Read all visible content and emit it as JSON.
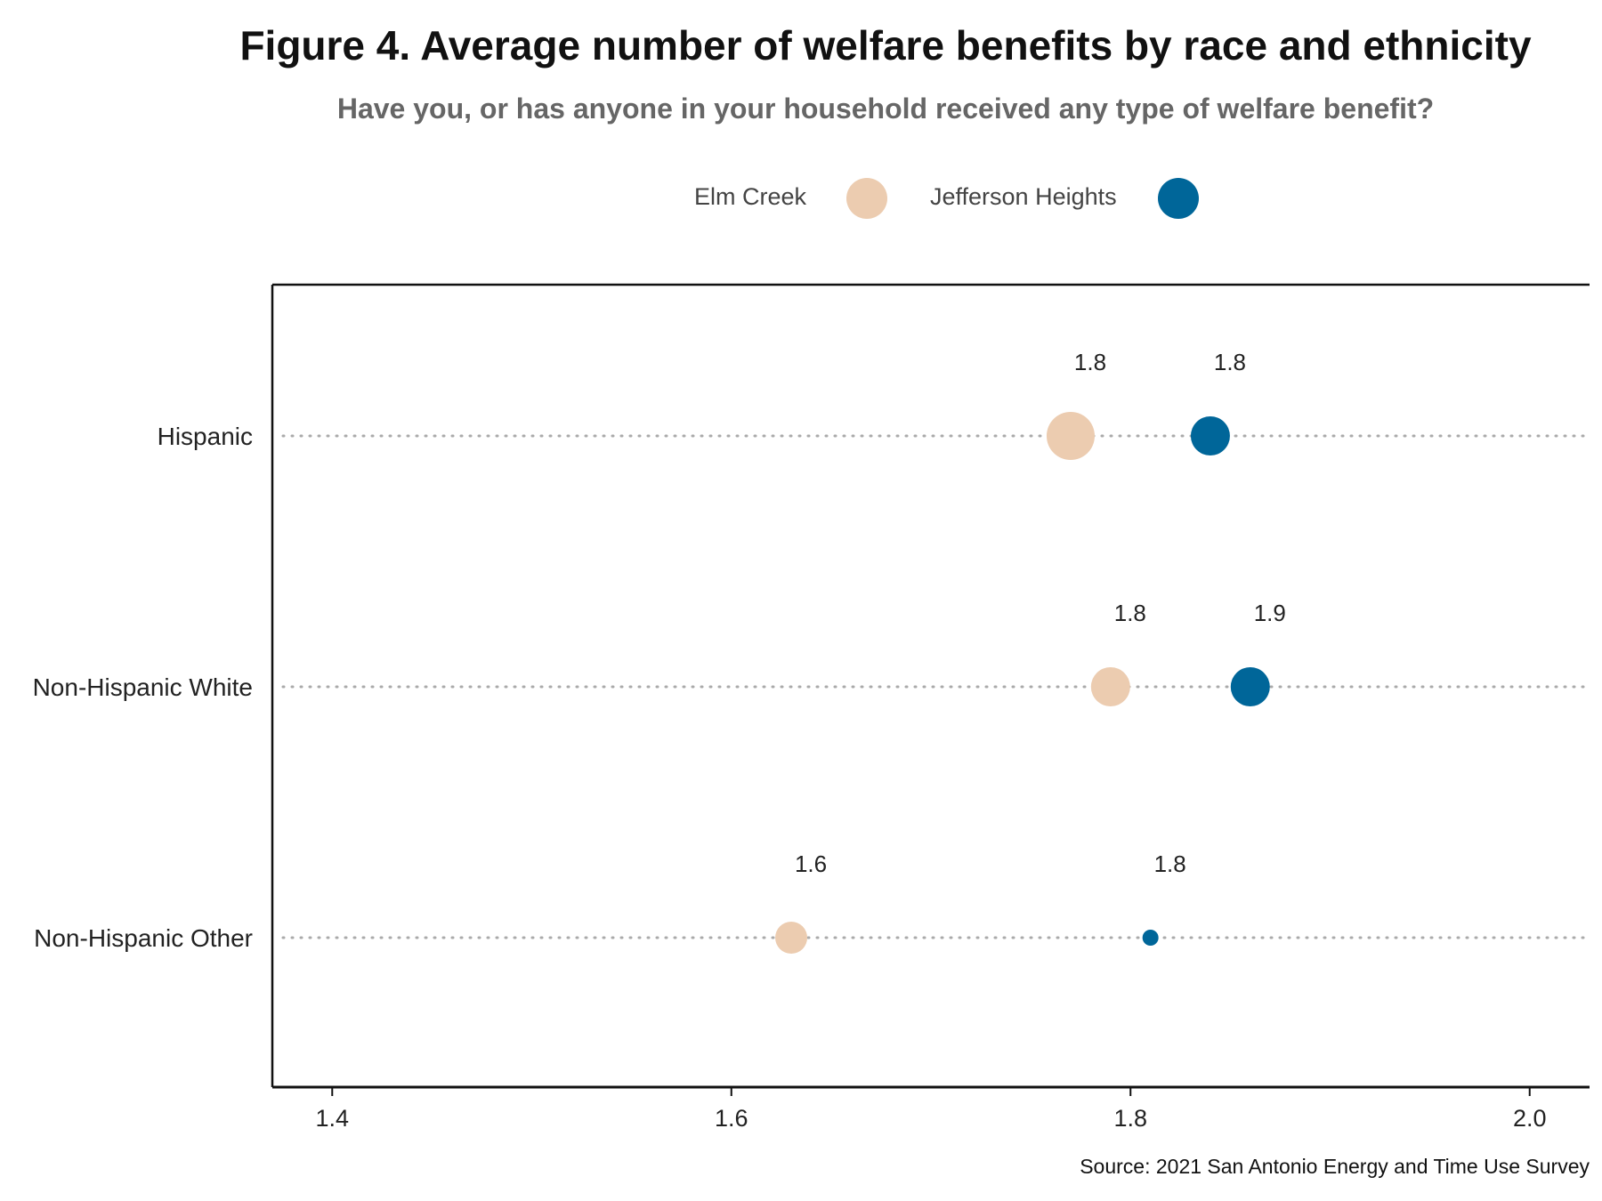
{
  "title": "Figure 4. Average number of welfare benefits by race and ethnicity",
  "subtitle": "Have you, or has anyone in your household received any type of welfare benefit?",
  "source": "Source: 2021 San Antonio Energy and Time Use Survey",
  "colors": {
    "elm_creek": "#ecccb0",
    "jefferson_heights": "#006699",
    "grid": "#aaaaaa",
    "axis": "#111111"
  },
  "legend": [
    {
      "name": "Elm Creek",
      "color": "#ecccb0"
    },
    {
      "name": "Jefferson Heights",
      "color": "#006699"
    }
  ],
  "chart_data": {
    "type": "scatter",
    "title": "Figure 4. Average number of welfare benefits by race and ethnicity",
    "subtitle": "Have you, or has anyone in your household received any type of welfare benefit?",
    "categories": [
      "Hispanic",
      "Non-Hispanic White",
      "Non-Hispanic Other"
    ],
    "xlim": [
      1.37,
      2.03
    ],
    "x_ticks": [
      "1.4",
      "1.6",
      "1.8",
      "2.0"
    ],
    "grid": "dotted horizontal lines per category",
    "legend_position": "top",
    "series": [
      {
        "name": "Elm Creek",
        "color": "#ecccb0",
        "values": [
          1.77,
          1.79,
          1.63
        ],
        "labels": [
          "1.8",
          "1.8",
          "1.6"
        ]
      },
      {
        "name": "Jefferson Heights",
        "color": "#006699",
        "values": [
          1.84,
          1.86,
          1.81
        ],
        "labels": [
          "1.8",
          "1.9",
          "1.8"
        ]
      }
    ],
    "point_size_rank": [
      [
        3,
        2,
        1
      ],
      [
        2,
        2,
        0
      ]
    ]
  }
}
